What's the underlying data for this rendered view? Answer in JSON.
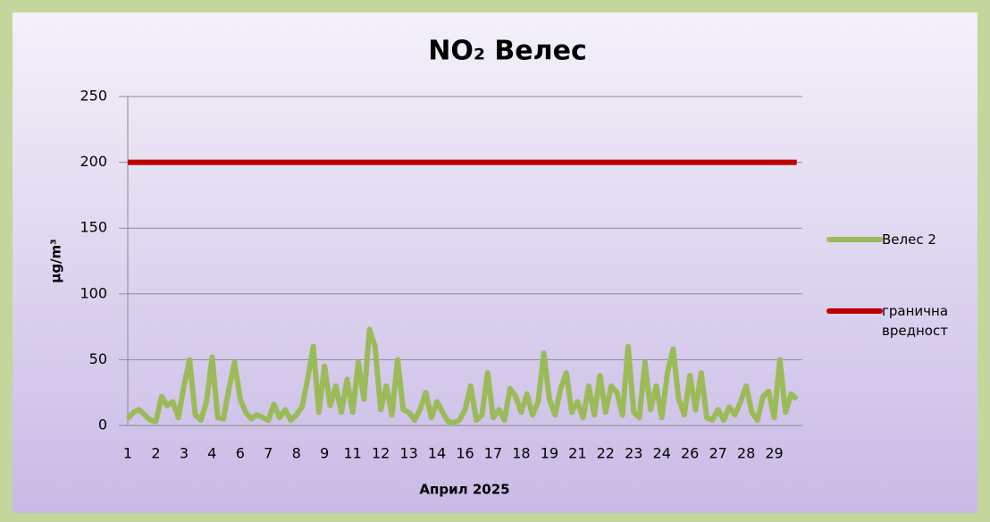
{
  "chart_data": {
    "type": "line",
    "title": "NO₂ Велес",
    "x_label": "Април 2025",
    "y_label": "µg/m³",
    "categories": [
      "1",
      null,
      null,
      null,
      null,
      "2",
      null,
      null,
      null,
      null,
      "3",
      null,
      null,
      null,
      null,
      "4",
      null,
      null,
      null,
      null,
      "6",
      null,
      null,
      null,
      null,
      "7",
      null,
      null,
      null,
      null,
      "8",
      null,
      null,
      null,
      null,
      "9",
      null,
      null,
      null,
      null,
      "11",
      null,
      null,
      null,
      null,
      "12",
      null,
      null,
      null,
      null,
      "13",
      null,
      null,
      null,
      null,
      "14",
      null,
      null,
      null,
      null,
      "16",
      null,
      null,
      null,
      null,
      "17",
      null,
      null,
      null,
      null,
      "18",
      null,
      null,
      null,
      null,
      "19",
      null,
      null,
      null,
      null,
      "21",
      null,
      null,
      null,
      null,
      "22",
      null,
      null,
      null,
      null,
      "23",
      null,
      null,
      null,
      null,
      "24",
      null,
      null,
      null,
      null,
      "26",
      null,
      null,
      null,
      null,
      "27",
      null,
      null,
      null,
      null,
      "28",
      null,
      null,
      null,
      null,
      "29",
      null,
      null,
      null,
      null
    ],
    "series": [
      {
        "name": "Велес 2",
        "color": "#9bbb59",
        "values": [
          5,
          10,
          12,
          8,
          4,
          3,
          22,
          15,
          18,
          6,
          30,
          50,
          8,
          4,
          18,
          52,
          6,
          5,
          28,
          48,
          20,
          10,
          5,
          8,
          6,
          4,
          16,
          6,
          12,
          4,
          8,
          14,
          35,
          60,
          10,
          45,
          15,
          30,
          10,
          35,
          10,
          48,
          20,
          73,
          60,
          12,
          30,
          8,
          50,
          12,
          10,
          4,
          12,
          25,
          6,
          18,
          10,
          3,
          2,
          4,
          12,
          30,
          4,
          8,
          40,
          6,
          12,
          4,
          28,
          22,
          10,
          24,
          8,
          18,
          55,
          20,
          8,
          28,
          40,
          10,
          18,
          6,
          30,
          8,
          38,
          10,
          30,
          25,
          8,
          60,
          10,
          6,
          48,
          12,
          30,
          6,
          40,
          58,
          20,
          8,
          38,
          12,
          40,
          6,
          4,
          12,
          4,
          14,
          8,
          18,
          30,
          10,
          4,
          22,
          26,
          6,
          50,
          10,
          24,
          20
        ]
      },
      {
        "name": "гранична вредност",
        "color": "#c00000",
        "values": [
          200,
          200,
          200,
          200,
          200,
          200,
          200,
          200,
          200,
          200,
          200,
          200,
          200,
          200,
          200,
          200,
          200,
          200,
          200,
          200,
          200,
          200,
          200,
          200,
          200,
          200,
          200,
          200,
          200,
          200,
          200,
          200,
          200,
          200,
          200,
          200,
          200,
          200,
          200,
          200,
          200,
          200,
          200,
          200,
          200,
          200,
          200,
          200,
          200,
          200,
          200,
          200,
          200,
          200,
          200,
          200,
          200,
          200,
          200,
          200,
          200,
          200,
          200,
          200,
          200,
          200,
          200,
          200,
          200,
          200,
          200,
          200,
          200,
          200,
          200,
          200,
          200,
          200,
          200,
          200,
          200,
          200,
          200,
          200,
          200,
          200,
          200,
          200,
          200,
          200,
          200,
          200,
          200,
          200,
          200,
          200,
          200,
          200,
          200,
          200,
          200,
          200,
          200,
          200,
          200,
          200,
          200,
          200,
          200,
          200,
          200,
          200,
          200,
          200,
          200,
          200,
          200,
          200,
          200,
          200
        ]
      }
    ],
    "ylim": [
      0,
      250
    ],
    "yticks": [
      0,
      50,
      100,
      150,
      200,
      250
    ],
    "grid": true,
    "legend": "right"
  }
}
